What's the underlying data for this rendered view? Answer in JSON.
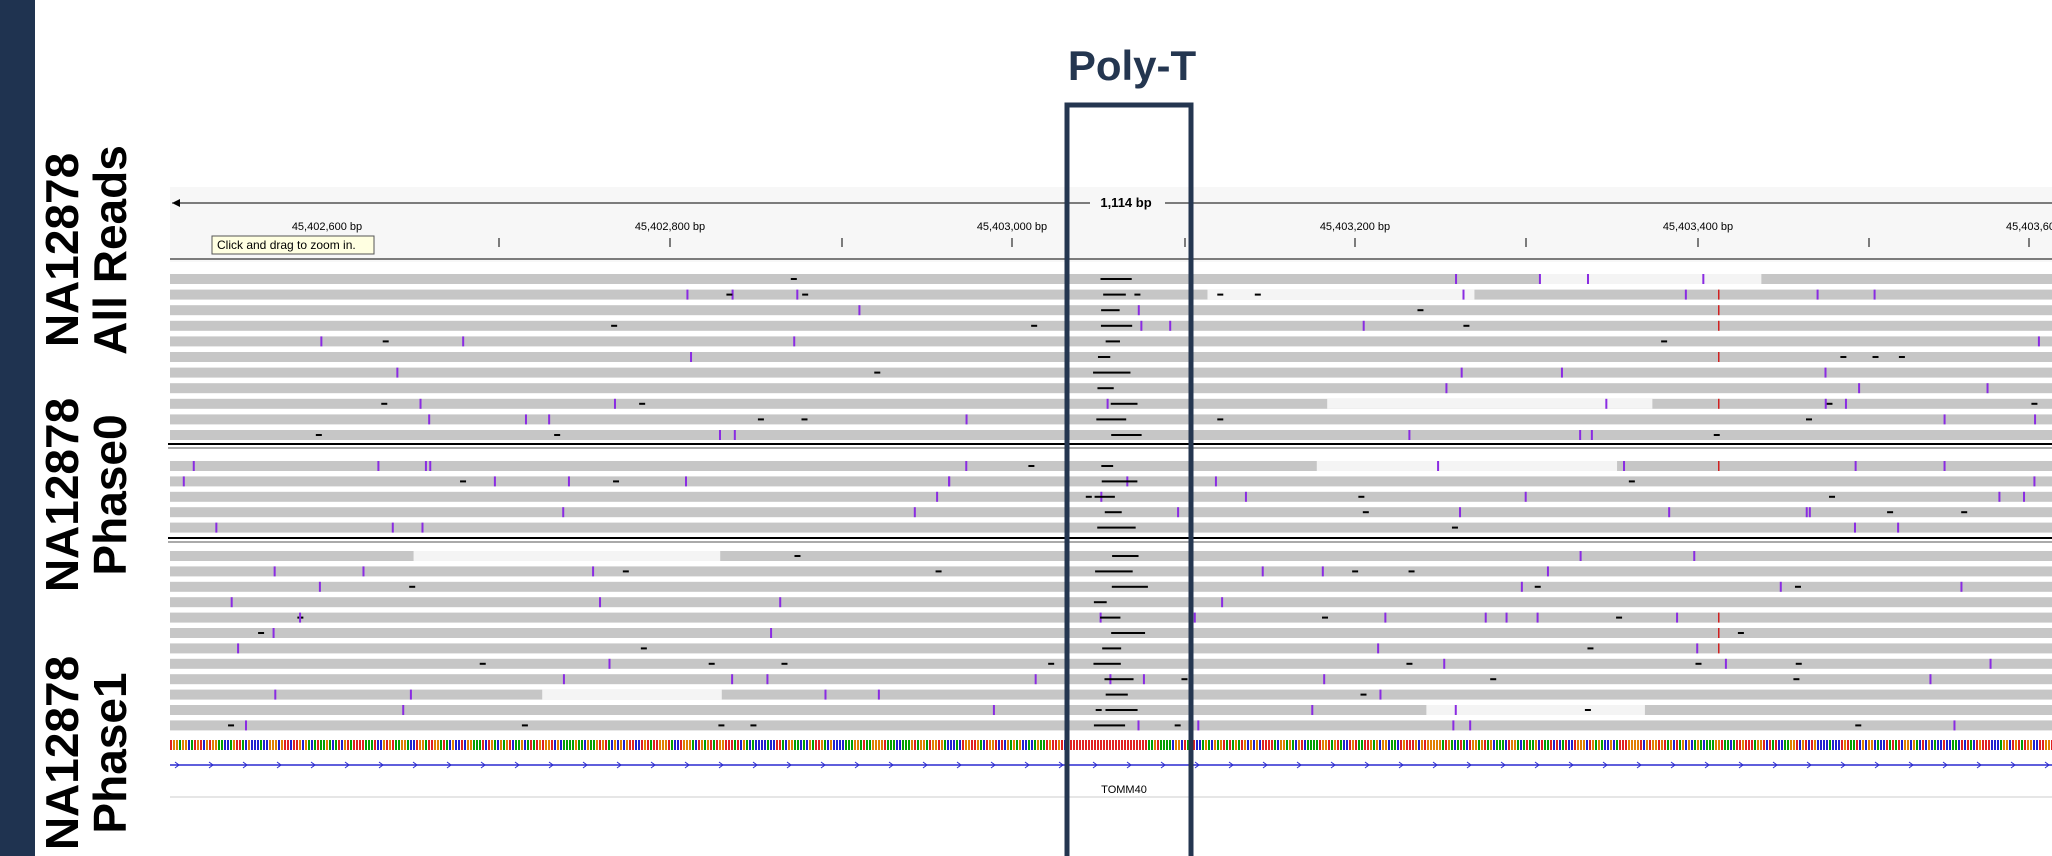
{
  "title": "Poly-T",
  "ruler": {
    "span": "1,114 bp",
    "ticks": [
      "45,402,600 bp",
      "45,402,800 bp",
      "45,403,000 bp",
      "45,403,200 bp",
      "45,403,400 bp",
      "45,403,60"
    ]
  },
  "tooltip": "Click and drag to zoom in.",
  "tracks": [
    {
      "sample": "NA12878",
      "label": "All Reads"
    },
    {
      "sample": "NA12878",
      "label": "Phase0"
    },
    {
      "sample": "NA12878",
      "label": "Phase1"
    }
  ],
  "gene": "TOMM40"
}
